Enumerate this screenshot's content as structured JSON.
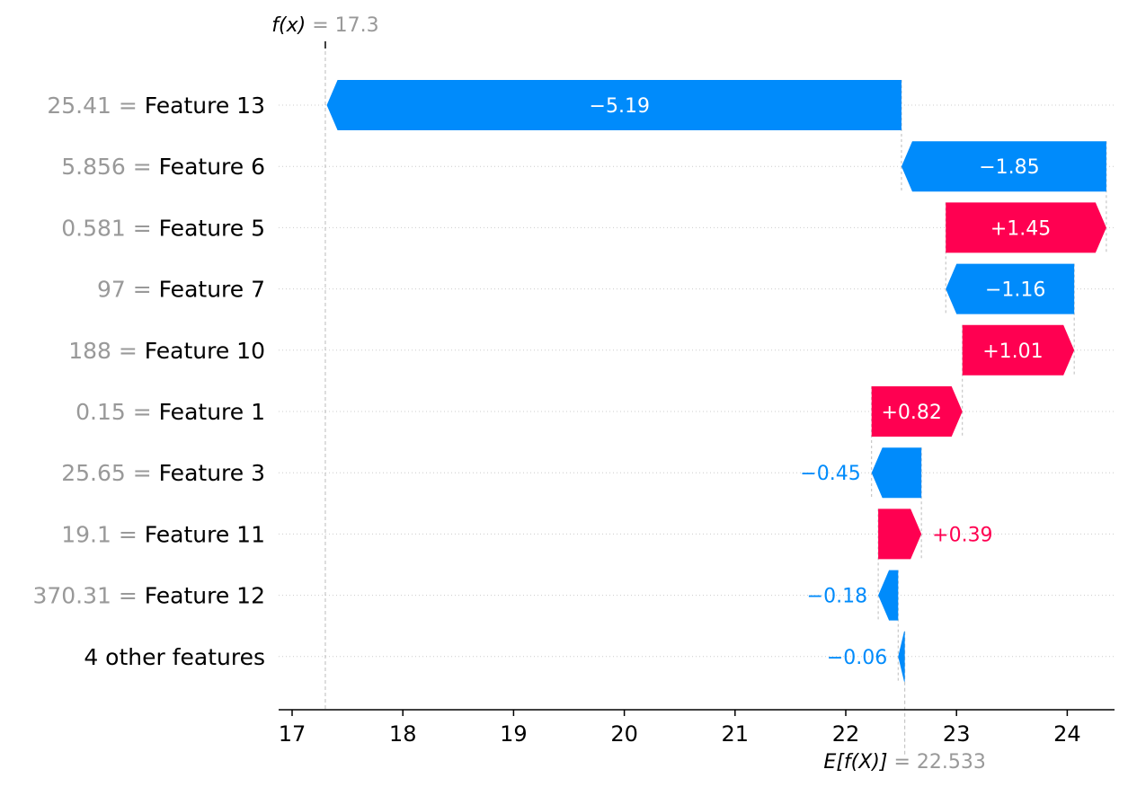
{
  "chart_data": {
    "type": "waterfall",
    "fx_label": "f(x)",
    "fx_value": 17.3,
    "fx_value_text": "17.3",
    "base_label": "E[f(X)]",
    "base_value": 22.533,
    "base_value_text": "22.533",
    "features": [
      {
        "value_text": "25.41",
        "name": "Feature 13",
        "contribution": -5.19,
        "label": "−5.19"
      },
      {
        "value_text": "5.856",
        "name": "Feature 6",
        "contribution": -1.85,
        "label": "−1.85"
      },
      {
        "value_text": "0.581",
        "name": "Feature 5",
        "contribution": 1.45,
        "label": "+1.45"
      },
      {
        "value_text": "97",
        "name": "Feature 7",
        "contribution": -1.16,
        "label": "−1.16"
      },
      {
        "value_text": "188",
        "name": "Feature 10",
        "contribution": 1.01,
        "label": "+1.01"
      },
      {
        "value_text": "0.15",
        "name": "Feature 1",
        "contribution": 0.82,
        "label": "+0.82"
      },
      {
        "value_text": "25.65",
        "name": "Feature 3",
        "contribution": -0.45,
        "label": "−0.45"
      },
      {
        "value_text": "19.1",
        "name": "Feature 11",
        "contribution": 0.39,
        "label": "+0.39"
      },
      {
        "value_text": "370.31",
        "name": "Feature 12",
        "contribution": -0.18,
        "label": "−0.18"
      },
      {
        "value_text": "",
        "name": "4 other features",
        "contribution": -0.06,
        "label": "−0.06"
      }
    ],
    "xticks": [
      17,
      18,
      19,
      20,
      21,
      22,
      23,
      24
    ],
    "xlim": [
      16.9,
      24.4
    ],
    "colors": {
      "positive": "#ff0051",
      "negative": "#008bfb",
      "muted": "#999999"
    }
  }
}
